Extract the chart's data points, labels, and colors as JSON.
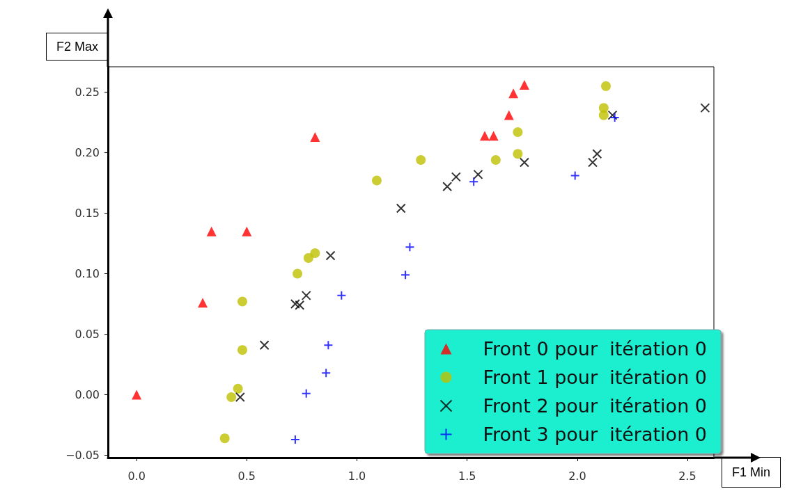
{
  "chart_data": {
    "type": "scatter",
    "xlabel": "F1 Min",
    "ylabel": "F2 Max",
    "xlim": [
      -0.13,
      2.62
    ],
    "ylim": [
      -0.052,
      0.271
    ],
    "xticks": [
      {
        "value": 0,
        "label": "0.0"
      },
      {
        "value": 0.5,
        "label": "0.5"
      },
      {
        "value": 1,
        "label": "1.0"
      },
      {
        "value": 1.5,
        "label": "1.5"
      },
      {
        "value": 2,
        "label": "2.0"
      },
      {
        "value": 2.5,
        "label": "2.5"
      }
    ],
    "yticks": [
      {
        "value": -0.05,
        "label": "−0.05"
      },
      {
        "value": 0,
        "label": "0.00"
      },
      {
        "value": 0.05,
        "label": "0.05"
      },
      {
        "value": 0.1,
        "label": "0.10"
      },
      {
        "value": 0.15,
        "label": "0.15"
      },
      {
        "value": 0.2,
        "label": "0.20"
      },
      {
        "value": 0.25,
        "label": "0.25"
      }
    ],
    "grid": false,
    "legend": "bottom right",
    "series": [
      {
        "name": "Front 0 pour  itération 0",
        "color": "#ff0000",
        "marker": "triangle",
        "x": [
          0,
          0.3,
          0.34,
          0.5,
          0.81,
          1.58,
          1.62,
          1.69,
          1.71,
          1.76
        ],
        "values": [
          0,
          0.076,
          0.135,
          0.135,
          0.213,
          0.214,
          0.214,
          0.231,
          0.249,
          0.256
        ]
      },
      {
        "name": "Front 1 pour  itération 0",
        "color": "#bfbf00",
        "marker": "circle",
        "x": [
          0.48,
          0.48,
          0.46,
          0.43,
          0.4,
          0.73,
          0.78,
          0.81,
          1.09,
          1.29,
          1.63,
          1.73,
          1.73,
          2.13,
          2.12,
          2.12
        ],
        "values": [
          0.077,
          0.037,
          0.005,
          -0.002,
          -0.036,
          0.1,
          0.113,
          0.117,
          0.177,
          0.194,
          0.194,
          0.199,
          0.217,
          0.255,
          0.237,
          0.231
        ]
      },
      {
        "name": "Front 2 pour  itération 0",
        "color": "#000000",
        "marker": "cross",
        "x": [
          0.47,
          0.58,
          0.72,
          0.74,
          0.77,
          0.88,
          1.2,
          1.41,
          1.45,
          1.55,
          1.76,
          2.07,
          2.09,
          2.16,
          2.58
        ],
        "values": [
          -0.002,
          0.041,
          0.075,
          0.074,
          0.082,
          0.115,
          0.154,
          0.172,
          0.18,
          0.182,
          0.192,
          0.192,
          0.199,
          0.231,
          0.237
        ]
      },
      {
        "name": "Front 3 pour  itération 0",
        "color": "#0000ff",
        "marker": "plus",
        "x": [
          0.72,
          0.77,
          0.86,
          0.87,
          0.93,
          1.22,
          1.24,
          1.53,
          1.99,
          2.17
        ],
        "values": [
          -0.037,
          0.001,
          0.018,
          0.041,
          0.082,
          0.099,
          0.122,
          0.176,
          0.181,
          0.229
        ]
      }
    ]
  }
}
